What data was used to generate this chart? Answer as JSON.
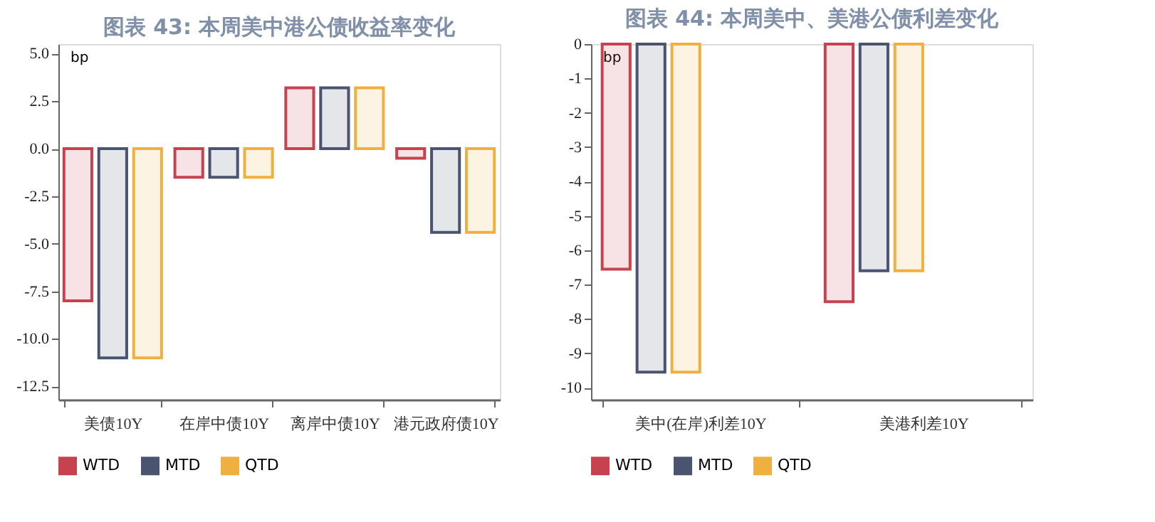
{
  "chart_data": [
    {
      "type": "bar",
      "title": "图表 43: 本周美中港公债收益率变化",
      "ylabel": "bp",
      "categories": [
        "美债10Y",
        "在岸中债10Y",
        "离岸中债10Y",
        "港元政府债10Y"
      ],
      "ylim": [
        -13.2,
        5.5
      ],
      "yticks": [
        {
          "value": 5,
          "label": "5.0"
        },
        2.5,
        {
          "value": 0,
          "label": "0.0"
        },
        -2.5,
        {
          "value": -5,
          "label": "-5.0"
        },
        -7.5,
        {
          "value": -10,
          "label": "-10.0"
        },
        -12.5
      ],
      "grid": false,
      "legend": "bottom",
      "series": [
        {
          "name": "WTD",
          "color": "#c8414f",
          "values": [
            -8.0,
            -1.5,
            3.2,
            -0.5
          ]
        },
        {
          "name": "MTD",
          "color": "#4a5470",
          "values": [
            -11.0,
            -1.5,
            3.2,
            -4.4
          ]
        },
        {
          "name": "QTD",
          "color": "#f0b040",
          "values": [
            -11.0,
            -1.5,
            3.2,
            -4.4
          ]
        }
      ]
    },
    {
      "type": "bar",
      "title": "图表 44: 本周美中、美港公债利差变化",
      "ylabel": "bp",
      "categories": [
        "美中(在岸)利差10Y",
        "美港利差10Y"
      ],
      "ylim": [
        -10.35,
        0
      ],
      "yticks": [
        0,
        -1,
        -2,
        -3,
        -4,
        -5,
        -6,
        -7,
        -8,
        -9,
        -10
      ],
      "grid": false,
      "legend": "bottom",
      "series": [
        {
          "name": "WTD",
          "color": "#c8414f",
          "values": [
            -6.55,
            -7.5
          ]
        },
        {
          "name": "MTD",
          "color": "#4a5470",
          "values": [
            -9.55,
            -6.6
          ]
        },
        {
          "name": "QTD",
          "color": "#f0b040",
          "values": [
            -9.55,
            -6.6
          ]
        }
      ]
    }
  ]
}
